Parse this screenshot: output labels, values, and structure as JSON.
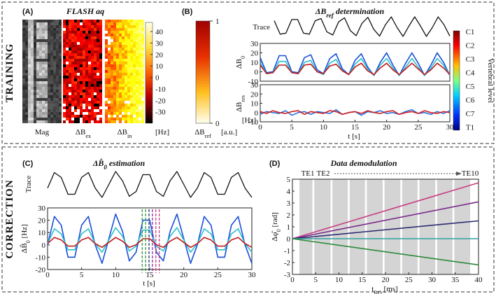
{
  "sections": {
    "training": "TRAINING",
    "correction": "CORRECTION"
  },
  "panels": {
    "a": {
      "label": "(A)",
      "title": "FLASH aq",
      "images": [
        {
          "main": "Mag"
        },
        {
          "main": "ΔB",
          "sub": "ex"
        },
        {
          "main": "ΔB",
          "sub": "in"
        }
      ],
      "colorbar_lim": [
        -40,
        48
      ],
      "colorbar_ticks": [
        40,
        30,
        20,
        10,
        0,
        -10,
        -20,
        -30
      ],
      "unit": "[Hz]"
    },
    "b": {
      "label": "(B)",
      "title": {
        "main": "ΔB",
        "sub": "ref",
        "after": " determination"
      },
      "colorbar_ticks": [
        1,
        0
      ],
      "colorbar_label": {
        "main": "ΔB",
        "sub": "ref"
      },
      "unit": "[a.u.]",
      "levels": [
        "C1",
        "C2",
        "C3",
        "C4",
        "C5",
        "C6",
        "C7",
        "T1"
      ],
      "levels_label": "Vertebral level"
    },
    "c": {
      "label": "(C)",
      "title": {
        "main": "ΔB̂",
        "sub": "0",
        "after": " estimation"
      }
    },
    "d": {
      "label": "(D)",
      "title": "Data demodulation",
      "te_labels": [
        "TE1",
        "TE2",
        "TE10"
      ]
    }
  },
  "chart_data": [
    {
      "type": "line",
      "ylabel": "Trace",
      "x": [
        0,
        1,
        2,
        3,
        4,
        5,
        6,
        7,
        8,
        9,
        10,
        11,
        12,
        13,
        14,
        15,
        16,
        17,
        18,
        19,
        20,
        21,
        22,
        23,
        24,
        25,
        26,
        27,
        28,
        29,
        30
      ],
      "series": [
        {
          "color": "#111111",
          "values": [
            0.61,
            -0.77,
            -0.67,
            0.72,
            0.72,
            -0.67,
            -0.77,
            0.6,
            0.82,
            -0.54,
            -0.86,
            0.48,
            0.9,
            -0.41,
            -0.93,
            0.34,
            0.95,
            -0.27,
            -0.97,
            0.19,
            0.99,
            -0.11,
            -1.0,
            0.04,
            1.0,
            0.04,
            -1.0,
            -0.11,
            0.99,
            0.19,
            -0.97
          ]
        }
      ]
    },
    {
      "type": "line",
      "ylabel": {
        "main": "ΔB",
        "sub": "0"
      },
      "x": [
        0,
        1,
        2,
        3,
        4,
        5,
        6,
        7,
        8,
        9,
        10,
        11,
        12,
        13,
        14,
        15,
        16,
        17,
        18,
        19,
        20,
        21,
        22,
        23,
        24,
        25,
        26,
        27,
        28,
        29,
        30
      ],
      "xlim": [
        0,
        30
      ],
      "ylim": [
        -10,
        30
      ],
      "yticks": [
        -10,
        0,
        10,
        20,
        30
      ],
      "frame": true,
      "series": [
        {
          "color": "#1a4fd8",
          "values": [
            15,
            -1,
            0,
            17,
            17,
            0,
            -1,
            15,
            18,
            2,
            -2,
            14,
            19,
            3,
            -3,
            12,
            19,
            5,
            -4,
            10,
            20,
            7,
            -4,
            9,
            20,
            9,
            -4,
            7,
            20,
            10,
            -4
          ]
        },
        {
          "color": "#2ac0d0",
          "values": [
            10,
            -2,
            -1,
            11,
            11,
            -1,
            -2,
            10,
            12,
            0,
            -3,
            9,
            13,
            1,
            -3,
            8,
            14,
            3,
            -4,
            7,
            14,
            4,
            -4,
            5,
            14,
            5,
            -4,
            4,
            14,
            7,
            -4
          ]
        },
        {
          "color": "#c41a1a",
          "values": [
            7,
            -2,
            -1,
            7,
            7,
            -1,
            -2,
            7,
            8,
            0,
            -2,
            6,
            8,
            1,
            -3,
            5,
            9,
            1,
            -3,
            4,
            9,
            2,
            -3,
            3,
            9,
            3,
            -3,
            2,
            9,
            4,
            -3
          ]
        }
      ]
    },
    {
      "type": "line",
      "ylabel": {
        "main": "ΔB",
        "sub": "res"
      },
      "unit": "[Hz]",
      "xlabel": "t [s]",
      "x": [
        0,
        1,
        2,
        3,
        4,
        5,
        6,
        7,
        8,
        9,
        10,
        11,
        12,
        13,
        14,
        15,
        16,
        17,
        18,
        19,
        20,
        21,
        22,
        23,
        24,
        25,
        26,
        27,
        28,
        29,
        30
      ],
      "xlim": [
        0,
        30
      ],
      "ylim": [
        -10,
        30
      ],
      "yticks": [
        -10,
        0,
        10,
        20,
        30
      ],
      "xticks": [
        0,
        5,
        10,
        15,
        20,
        25,
        30
      ],
      "frame": true,
      "series": [
        {
          "color": "#2a70e0",
          "values": [
            -2,
            1,
            0,
            -1,
            2,
            -3,
            0,
            1,
            -2,
            1,
            0,
            -1,
            3,
            -2,
            0,
            1,
            -3,
            1,
            0,
            2,
            -1,
            0,
            -2,
            1,
            3,
            -1,
            0,
            -2,
            1,
            -1,
            2
          ]
        },
        {
          "color": "#d02020",
          "values": [
            1,
            -1,
            2,
            0,
            -1,
            1,
            2,
            -2,
            1,
            0,
            -1,
            2,
            1,
            -2,
            0,
            1,
            -1,
            2,
            0,
            -1,
            1,
            2,
            -2,
            0,
            1,
            -1,
            2,
            0,
            -1,
            1,
            0
          ]
        }
      ]
    },
    {
      "type": "line",
      "ylabel": "Trace",
      "x": [
        0,
        1,
        2,
        3,
        4,
        5,
        6,
        7,
        8,
        9,
        10,
        11,
        12,
        13,
        14,
        15,
        16,
        17,
        18,
        19,
        20,
        21,
        22,
        23,
        24,
        25,
        26,
        27,
        28,
        29,
        30
      ],
      "series": [
        {
          "color": "#111111",
          "values": [
            -0.28,
            0.91,
            0.54,
            -0.75,
            -0.75,
            0.54,
            0.91,
            -0.28,
            -0.99,
            0,
            0.99,
            0.28,
            -0.91,
            -0.54,
            0.75,
            0.75,
            -0.54,
            -0.91,
            0.28,
            0.99,
            0,
            -0.99,
            -0.28,
            0.91,
            0.54,
            -0.75,
            -0.75,
            0.54,
            0.91,
            -0.28,
            -0.99
          ]
        }
      ]
    },
    {
      "type": "line",
      "ylabel": {
        "main": "ΔB̂",
        "sub": "0",
        "after": " [Hz]"
      },
      "xlabel": "t [s]",
      "x": [
        0,
        1,
        2,
        3,
        4,
        5,
        6,
        7,
        8,
        9,
        10,
        11,
        12,
        13,
        14,
        15,
        16,
        17,
        18,
        19,
        20,
        21,
        22,
        23,
        24,
        25,
        26,
        27,
        28,
        29,
        30
      ],
      "xlim": [
        0,
        30
      ],
      "ylim": [
        -20,
        30
      ],
      "yticks": [
        -20,
        -10,
        0,
        10,
        20,
        30
      ],
      "xticks": [
        0,
        5,
        10,
        15,
        20,
        25,
        30
      ],
      "frame": true,
      "series": [
        {
          "color": "#1a4fd8",
          "values": [
            0,
            23,
            16,
            -10,
            -10,
            16,
            23,
            0,
            -15,
            5,
            25,
            11,
            -13,
            -6,
            20,
            20,
            -6,
            -13,
            11,
            25,
            5,
            -15,
            0,
            23,
            16,
            -10,
            -10,
            16,
            23,
            0,
            -15
          ]
        },
        {
          "color": "#2ac0d0",
          "values": [
            1,
            13,
            9,
            -4,
            -4,
            9,
            13,
            1,
            -6,
            4,
            14,
            7,
            -5,
            -1,
            12,
            12,
            -1,
            -5,
            7,
            14,
            4,
            -6,
            1,
            13,
            9,
            -4,
            -4,
            9,
            13,
            1,
            -6
          ]
        },
        {
          "color": "#c41a1a",
          "values": [
            1,
            6,
            4,
            -1,
            -1,
            4,
            6,
            1,
            -2,
            2,
            6,
            3,
            -2,
            0,
            5,
            5,
            0,
            -2,
            3,
            6,
            2,
            -2,
            1,
            6,
            4,
            -1,
            -1,
            4,
            6,
            1,
            -2
          ]
        }
      ],
      "markers": [
        {
          "x": 13.9,
          "color": "#2a9a3a"
        },
        {
          "x": 14.4,
          "color": "#2a9a3a"
        },
        {
          "x": 14.9,
          "color": "#2a2a80"
        },
        {
          "x": 15.4,
          "color": "#8a2a9a"
        },
        {
          "x": 15.9,
          "color": "#c83c82"
        },
        {
          "x": 16.4,
          "color": "#c83c82"
        }
      ]
    },
    {
      "type": "line",
      "ylabel": {
        "main": "Δφ̂",
        "sub": "0",
        "after": " [rad]"
      },
      "xlabel": {
        "main": "t",
        "sub": "RO",
        "after": " [ms]"
      },
      "x": [
        0,
        40
      ],
      "xlim": [
        0,
        40
      ],
      "ylim": [
        -3,
        5
      ],
      "yticks": [
        -3,
        -2,
        -1,
        0,
        1,
        2,
        3,
        4,
        5
      ],
      "xticks": [
        0,
        5,
        10,
        15,
        20,
        25,
        30,
        35,
        40
      ],
      "frame": true,
      "readouts": [
        [
          1.5,
          4.3
        ],
        [
          4.7,
          8.2
        ],
        [
          8.6,
          11.9
        ],
        [
          12.3,
          15.6
        ],
        [
          16.0,
          19.4
        ],
        [
          19.8,
          23.2
        ],
        [
          23.6,
          26.9
        ],
        [
          27.3,
          30.7
        ],
        [
          31.1,
          34.4
        ],
        [
          34.8,
          38.2
        ]
      ],
      "series": [
        {
          "color": "#c83c82",
          "values": [
            0,
            4.7
          ]
        },
        {
          "color": "#7a2a8a",
          "values": [
            0,
            3.1
          ]
        },
        {
          "color": "#2a2a70",
          "values": [
            0,
            1.5
          ]
        },
        {
          "color": "#30a0a0",
          "values": [
            0,
            0
          ]
        },
        {
          "color": "#2a8a3a",
          "values": [
            0,
            -2.2
          ]
        }
      ]
    }
  ]
}
